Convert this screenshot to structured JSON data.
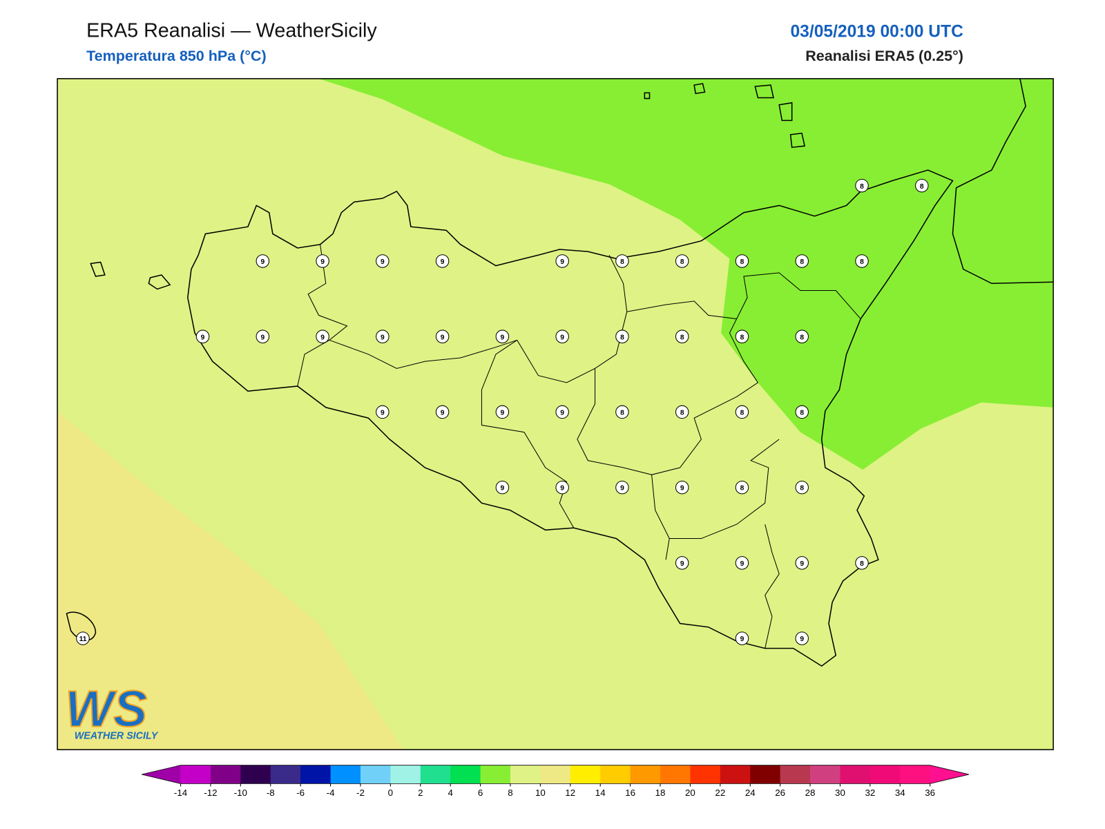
{
  "header": {
    "title": "ERA5 Reanalisi — WeatherSicily",
    "subtitle": "Temperatura 850 hPa (°C)",
    "datetime": "03/05/2019 00:00 UTC",
    "source": "Reanalisi ERA5 (0.25°)"
  },
  "grid": {
    "rows": [
      [
        null,
        null,
        null,
        null,
        null,
        null,
        null,
        null,
        null,
        null,
        null,
        null,
        null,
        8,
        8
      ],
      [
        null,
        null,
        null,
        9,
        9,
        9,
        9,
        null,
        9,
        8,
        8,
        8,
        8,
        8,
        null
      ],
      [
        null,
        null,
        9,
        9,
        9,
        9,
        9,
        9,
        9,
        8,
        8,
        8,
        8,
        null,
        null
      ],
      [
        null,
        null,
        null,
        null,
        null,
        9,
        9,
        9,
        9,
        8,
        8,
        8,
        8,
        null,
        null
      ],
      [
        null,
        null,
        null,
        null,
        null,
        null,
        null,
        9,
        9,
        9,
        9,
        8,
        8,
        null,
        null
      ],
      [
        null,
        null,
        null,
        null,
        null,
        null,
        null,
        null,
        null,
        null,
        9,
        9,
        9,
        8,
        null
      ],
      [
        11,
        null,
        null,
        null,
        null,
        null,
        null,
        null,
        null,
        null,
        null,
        9,
        9,
        null,
        null
      ]
    ]
  },
  "colorbar": {
    "ticks": [
      -14,
      -12,
      -10,
      -8,
      -6,
      -4,
      -2,
      0,
      2,
      4,
      6,
      8,
      10,
      12,
      14,
      16,
      18,
      20,
      22,
      24,
      26,
      28,
      30,
      32,
      34,
      36
    ],
    "under_color": "#a000a8",
    "over_color": "#ff1090",
    "colors": [
      "#c400c8",
      "#800088",
      "#300050",
      "#3a2a8a",
      "#0014a8",
      "#0090ff",
      "#70d0f8",
      "#a0f2e6",
      "#20e090",
      "#00e050",
      "#88ee33",
      "#dff285",
      "#eee985",
      "#ffee00",
      "#ffcc00",
      "#ff9900",
      "#ff7700",
      "#ff3300",
      "#cc1111",
      "#800000",
      "#b83850",
      "#d04080",
      "#e01070",
      "#f00a78",
      "#ff1080"
    ]
  },
  "logo": {
    "mark": "WS",
    "name": "WEATHER SICILY"
  }
}
